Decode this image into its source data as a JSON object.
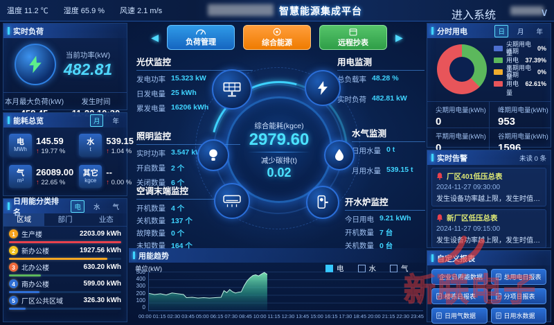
{
  "header": {
    "temperature": "温度 11.2 ℃",
    "humidity": "湿度 65.9 %",
    "wind": "风速 2.1 m/s",
    "title": "智慧能源集成平台",
    "enter_system": "进入系统",
    "chevron": "∨"
  },
  "nav": {
    "prev": "◀",
    "next": "▶",
    "buttons": [
      {
        "label": "负荷管理"
      },
      {
        "label": "综合能源"
      },
      {
        "label": "远程抄表"
      }
    ]
  },
  "realtime_load": {
    "title": "实时负荷",
    "current_label": "当前功率(kW)",
    "current_value": "482.81",
    "max_label": "本月最大负荷(kW)",
    "max_value": "458.45",
    "time_label": "发生时间",
    "time_value": "11-20 10:30"
  },
  "energy_overview": {
    "title": "能耗总览",
    "toggle_month": "月",
    "toggle_year": "年",
    "cards": [
      {
        "type": "电",
        "unit": "MWh",
        "value": "145.59",
        "arrow": "↑",
        "delta": "19.77 %"
      },
      {
        "type": "水",
        "unit": "t",
        "value": "539.15",
        "arrow": "↑",
        "delta": "1.04 %"
      },
      {
        "type": "气",
        "unit": "m³",
        "value": "26089.00",
        "arrow": "↑",
        "delta": "22.65 %"
      },
      {
        "type": "其它",
        "unit": "kgce",
        "value": "--",
        "arrow": "↑",
        "delta": "0.00 %"
      }
    ]
  },
  "ranking": {
    "title": "日用能分类排名",
    "toggle": [
      "电",
      "水",
      "气"
    ],
    "tabs": [
      "区域",
      "部门",
      "业态"
    ],
    "items": [
      {
        "rank": "1",
        "name": "生产楼",
        "value": 2203.09,
        "display": "2203.09 kWh",
        "color": "#e8414d"
      },
      {
        "rank": "2",
        "name": "新办公楼",
        "value": 1927.56,
        "display": "1927.56 kWh",
        "color": "#f5a623"
      },
      {
        "rank": "3",
        "name": "北办公楼",
        "value": 630.2,
        "display": "630.20 kWh",
        "color": "#5cb85c"
      },
      {
        "rank": "4",
        "name": "南办公楼",
        "value": 599.0,
        "display": "599.00 kWh",
        "color": "#2f6fd6"
      },
      {
        "rank": "5",
        "name": "厂区公共区域",
        "value": 326.3,
        "display": "326.30 kWh",
        "color": "#2f6fd6"
      }
    ]
  },
  "pv": {
    "title": "光伏监控",
    "rows": [
      {
        "label": "发电功率",
        "value": "15.323 kW"
      },
      {
        "label": "日发电量",
        "value": "25 kWh"
      },
      {
        "label": "累发电量",
        "value": "16206 kWh"
      }
    ]
  },
  "lighting": {
    "title": "照明监控",
    "rows": [
      {
        "label": "实时功率",
        "value": "3.547 kW"
      },
      {
        "label": "开启数量",
        "value": "2 个"
      },
      {
        "label": "关闭数量",
        "value": "6 个"
      }
    ]
  },
  "ac": {
    "title": "空调末端监控",
    "rows": [
      {
        "label": "开机数量",
        "value": "4 个"
      },
      {
        "label": "关机数量",
        "value": "137 个"
      },
      {
        "label": "故障数量",
        "value": "0 个"
      },
      {
        "label": "未知数量",
        "value": "164 个"
      }
    ]
  },
  "power_monitor": {
    "title": "用电监测",
    "rows": [
      {
        "label": "总负载率",
        "value": "48.28 %"
      },
      {
        "label": "实时负荷",
        "value": "482.81 kW"
      }
    ]
  },
  "water_gas": {
    "title": "水气监测",
    "rows": [
      {
        "label": "日用水量",
        "value": "0 t"
      },
      {
        "label": "月用水量",
        "value": "539.15 t"
      }
    ]
  },
  "boiler": {
    "title": "开水炉监控",
    "rows": [
      {
        "label": "今日用电",
        "value": "9.21 kWh"
      },
      {
        "label": "开机数量",
        "value": "7 台"
      },
      {
        "label": "关机数量",
        "value": "0 台"
      }
    ]
  },
  "center_ring": {
    "label1": "综合能耗(kgce)",
    "value1": "2979.60",
    "label2": "减少碳排(t)",
    "value2": "0.02"
  },
  "time_of_use": {
    "title": "分时用电",
    "toggle": [
      "日",
      "月",
      "年"
    ],
    "legend": [
      {
        "label": "尖期用电量",
        "pct": "0%",
        "color": "#4d6fd0"
      },
      {
        "label": "峰期用电量",
        "pct": "37.39%",
        "color": "#5cb85c"
      },
      {
        "label": "平期用电量",
        "pct": "0%",
        "color": "#f0ad2e"
      },
      {
        "label": "谷期用电量",
        "pct": "62.61%",
        "color": "#e8555a"
      }
    ],
    "stats": [
      {
        "label": "尖期用电量(kWh)",
        "value": "0"
      },
      {
        "label": "峰期用电量(kWh)",
        "value": "953"
      },
      {
        "label": "平期用电量(kWh)",
        "value": "0"
      },
      {
        "label": "谷期用电量(kWh)",
        "value": "1596"
      }
    ]
  },
  "alarms": {
    "title": "实时告警",
    "unread": "未读 0 条",
    "items": [
      {
        "title": "厂区401低压总表",
        "time": "2024-11-27 09:30:00",
        "desc": "发生设备功率越上限，发生时值253.2kW，…"
      },
      {
        "title": "新厂区低压总表",
        "time": "2024-11-27 09:15:00",
        "desc": "发生设备功率越上限，发生时值224.94kW…"
      }
    ]
  },
  "reports": {
    "title": "自定义报表",
    "buttons": [
      "企业日用能数据",
      "总用电日报表",
      "楼栋日报表",
      "分项日报表",
      "日用气数据",
      "日用水数据"
    ]
  },
  "watermark": "新联电子",
  "chart_data": [
    {
      "type": "pie",
      "title": "分时用电占比",
      "segments": [
        {
          "label": "尖期用电量",
          "value": 0,
          "pct": 0,
          "color": "#4d6fd0"
        },
        {
          "label": "峰期用电量",
          "value": 953,
          "pct": 37.39,
          "color": "#5cb85c"
        },
        {
          "label": "平期用电量",
          "value": 0,
          "pct": 0,
          "color": "#f0ad2e"
        },
        {
          "label": "谷期用电量",
          "value": 1596,
          "pct": 62.61,
          "color": "#e8555a"
        }
      ],
      "legend_position": "right"
    },
    {
      "type": "area",
      "title": "用能趋势",
      "unit_label": "单位(kW)",
      "legend": [
        {
          "label": "电",
          "checked": true,
          "color": "#35c8ff"
        },
        {
          "label": "水",
          "checked": false
        },
        {
          "label": "气",
          "checked": false
        }
      ],
      "ylim": [
        0,
        500
      ],
      "yticks": [
        0,
        100,
        200,
        300,
        400,
        500
      ],
      "x_total_minutes": 1425,
      "x_labels": [
        "00:00",
        "01:15",
        "02:30",
        "03:45",
        "05:00",
        "06:15",
        "07:30",
        "08:45",
        "10:00",
        "11:15",
        "12:30",
        "13:45",
        "15:00",
        "16:15",
        "17:30",
        "18:45",
        "20:00",
        "21:15",
        "22:30",
        "23:45"
      ],
      "series": [
        {
          "name": "电",
          "x_minutes": [
            0,
            30,
            60,
            90,
            120,
            150,
            180,
            195,
            225,
            255,
            285,
            315,
            345,
            375,
            390,
            405,
            420,
            435,
            450,
            465,
            480,
            495,
            510,
            525,
            540,
            555,
            570,
            585,
            600,
            615
          ],
          "values": [
            220,
            205,
            215,
            200,
            225,
            215,
            205,
            165,
            170,
            160,
            165,
            160,
            165,
            170,
            255,
            230,
            270,
            240,
            225,
            235,
            240,
            320,
            380,
            420,
            450,
            460,
            445,
            470,
            490,
            465
          ]
        }
      ]
    }
  ]
}
